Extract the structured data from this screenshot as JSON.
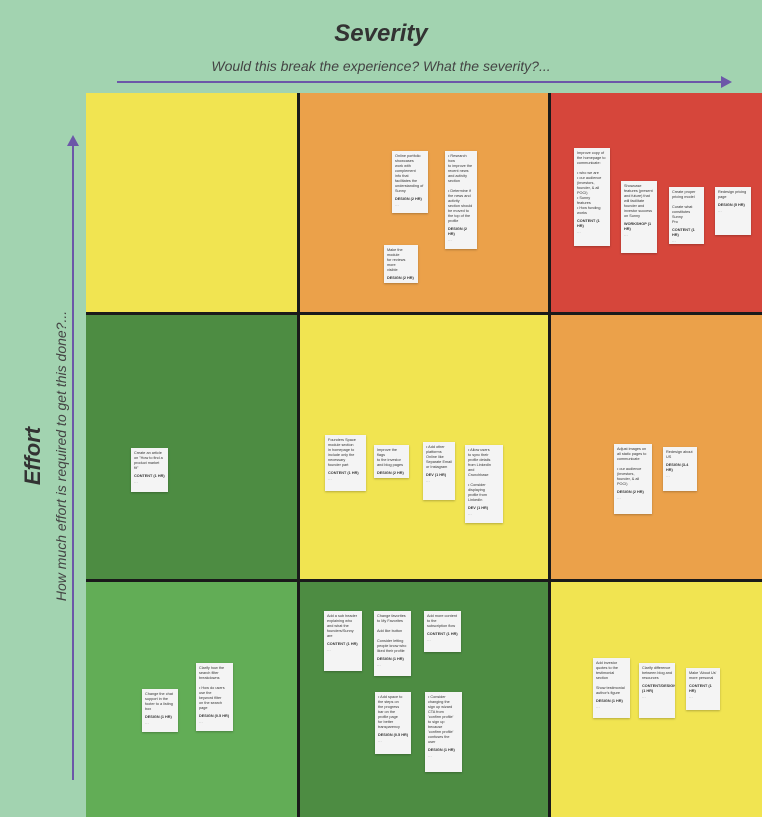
{
  "header": {
    "title": "Severity",
    "subtitle": "Would this break the experience? What the severity?..."
  },
  "y_axis": {
    "title": "Effort",
    "subtitle": "How much effort is required to get this done?..."
  },
  "colors": {
    "background": "#a2d3b0",
    "arrow": "#6c57a8",
    "yellow": "#f1e451",
    "orange": "#eba14a",
    "red": "#d6463b",
    "dark_green": "#4d8c42",
    "light_green": "#62ad56"
  },
  "cells": [
    {
      "name": "cell-high-effort-low-severity",
      "color": "#f1e451",
      "notes": []
    },
    {
      "name": "cell-high-effort-medium-severity",
      "color": "#eba14a",
      "notes": [
        {
          "text": "Online portfolio showcases\nwork with\ncomplement\ninfo that\nfacilitates the\nunderstanding of\nSunny",
          "tag": "DESIGN (2 HR)"
        },
        {
          "text": "• Research how\nto improve the\nrecent news\nand activity\nsection\n\n• Determine if\nthe news and\nactivity\nsection should\nbe moved to\nthe top of the\nprofile",
          "tag": "DESIGN (2 HR)"
        },
        {
          "text": "Make the module\nfor reviews more\nvisible",
          "tag": "DESIGN (2 HR)"
        }
      ]
    },
    {
      "name": "cell-high-effort-high-severity",
      "color": "#d6463b",
      "notes": [
        {
          "text": "Improve copy of\nthe homepage to\ncommunicate:\n\n• who we are\n• our audience\n(investors,\nfounder, & all\nPOCI)\n• Sunny\nfeatures\n• How funding\nworks",
          "tag": "CONTENT (1 HR)"
        },
        {
          "text": "Showcase\nfeatures (present\nand future) that\nwill facilitate\nfounder and\ninvestor success\non Sunny",
          "tag": "WORKSHOP (1 HR)"
        },
        {
          "text": "Create proper\npricing model\n\nCurate what\nconstitutes Sunny\nPro",
          "tag": "CONTENT (1 HR)"
        },
        {
          "text": "Redesign pricing\npage",
          "tag": "DESIGN (5 HR)"
        }
      ]
    },
    {
      "name": "cell-medium-effort-low-severity",
      "color": "#4d8c42",
      "notes": [
        {
          "text": "Create an article\non \"How to find a\nproduct market\nfit\"",
          "tag": "CONTENT (1 HR)"
        }
      ]
    },
    {
      "name": "cell-medium-effort-medium-severity",
      "color": "#f1e451",
      "notes": [
        {
          "text": "Founders Space\nmodule section\nin homepage to\ninclude only the\nnecessary\nfounder part",
          "tag": "CONTENT (1 HR)"
        },
        {
          "text": "Improve the flags\nto the investor\nand blog pages",
          "tag": "DESIGN (2 HR)"
        },
        {
          "text": "• Add other\nplatforms\nOnline like\nSeparate Email\nor Instagram",
          "tag": "DEV (1 HR)"
        },
        {
          "text": "• Allow users\nto sync their\nprofile details\nfrom LinkedIn\nand\nCrunchbase\n\n• Consider\ndisplaying\nprofile from\nLinkedIn",
          "tag": "DEV (1 HR)"
        }
      ]
    },
    {
      "name": "cell-medium-effort-high-severity",
      "color": "#eba14a",
      "notes": [
        {
          "text": "Adjust images on\nall static pages to\ncommunicate\n\n• our audience\n(investors,\nfounder, & all\nPOCI)",
          "tag": "DESIGN (2 HR)"
        },
        {
          "text": "Redesign about\nUS",
          "tag": "DESIGN (3-4 HR)"
        }
      ]
    },
    {
      "name": "cell-low-effort-low-severity",
      "color": "#62ad56",
      "notes": [
        {
          "text": "Change the chat\nsupport in the\nfooter to a listing\nbox",
          "tag": "DESIGN (1 HR)"
        },
        {
          "text": "Clarify how the\nsearch filter\nbreakdowns\n\n• How do users\nuse the\nkeyword filter\non the search\npage",
          "tag": "DESIGN (0.5 HR)"
        }
      ]
    },
    {
      "name": "cell-low-effort-medium-severity",
      "color": "#4d8c42",
      "notes": [
        {
          "text": "Add a sub header\nexplaining who\nand what the\nfounders/Sunny\nare",
          "tag": "CONTENT (1 HR)"
        },
        {
          "text": "Change favorites\nto My Favorites\n\nAdd like button\n\nConsider letting\npeople know who\nliked their profile",
          "tag": "DESIGN (1 HR)"
        },
        {
          "text": "Add more content\nto the\nsubscription flow",
          "tag": "CONTENT (1 HR)"
        },
        {
          "text": "• Add space to\nthe steps on\nthe progress\nbar on the\nprofile page\nfor better\ntransparency",
          "tag": "DESIGN (0.5 HR)"
        },
        {
          "text": "• Consider\nchanging the\nsign up wizard\nCTA from\n'confirm profile'\nto sign up\nbecause\n'confirm profile'\nconfuses the\nuser",
          "tag": "DESIGN (1 HR)"
        }
      ]
    },
    {
      "name": "cell-low-effort-high-severity",
      "color": "#f1e451",
      "notes": [
        {
          "text": "Add investor\nquotes to the\ntestimonial\nsection\n\nShow testimonial\nauthor's figure",
          "tag": "DESIGN (1 HR)"
        },
        {
          "text": "Clarify difference\nbetween blog and\nresources",
          "tag": "CONTENT/DESIGN (1 HR)"
        },
        {
          "text": "Make 'About Us'\nmore personal",
          "tag": "CONTENT (1 HR)"
        }
      ]
    }
  ]
}
